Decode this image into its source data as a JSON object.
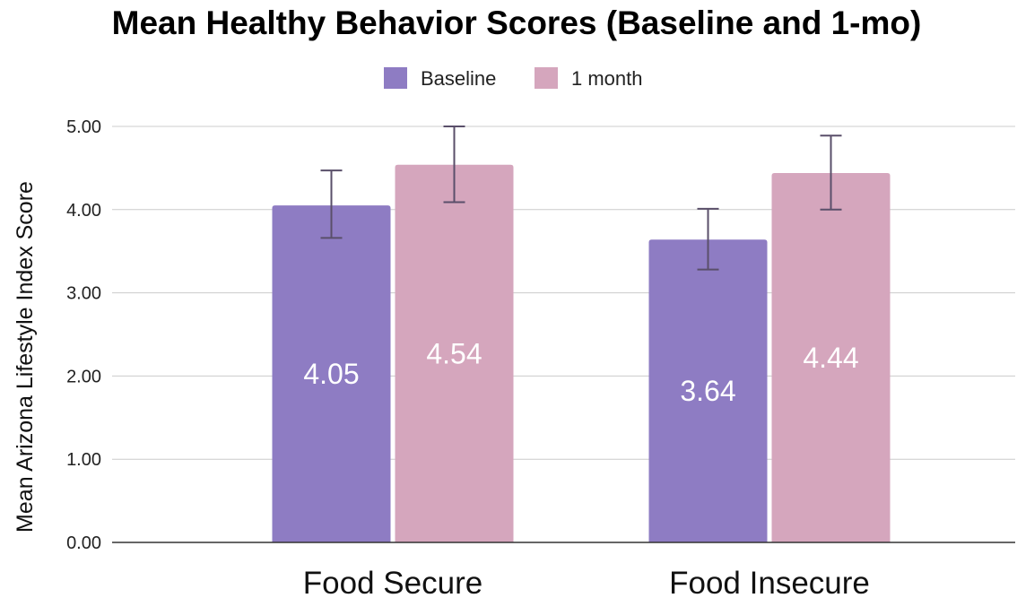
{
  "chart_data": {
    "type": "bar",
    "title": "Mean Healthy Behavior Scores (Baseline and 1-mo)",
    "ylabel": "Mean Arizona Lifestyle Index Score",
    "xlabel": "",
    "categories": [
      "Food Secure",
      "Food Insecure"
    ],
    "ylim": [
      0,
      5
    ],
    "yticks": [
      "0.00",
      "1.00",
      "2.00",
      "3.00",
      "4.00",
      "5.00"
    ],
    "grid": true,
    "legend_position": "top-center",
    "series": [
      {
        "name": "Baseline",
        "color": "#8e7cc3",
        "values": [
          4.05,
          3.64
        ],
        "labels": [
          "4.05",
          "3.64"
        ],
        "error_low": [
          3.66,
          3.28
        ],
        "error_high": [
          4.47,
          4.01
        ]
      },
      {
        "name": "1 month",
        "color": "#d5a6bd",
        "values": [
          4.54,
          4.44
        ],
        "labels": [
          "4.54",
          "4.44"
        ],
        "error_low": [
          4.09,
          4.0
        ],
        "error_high": [
          5.0,
          4.89
        ]
      }
    ]
  }
}
